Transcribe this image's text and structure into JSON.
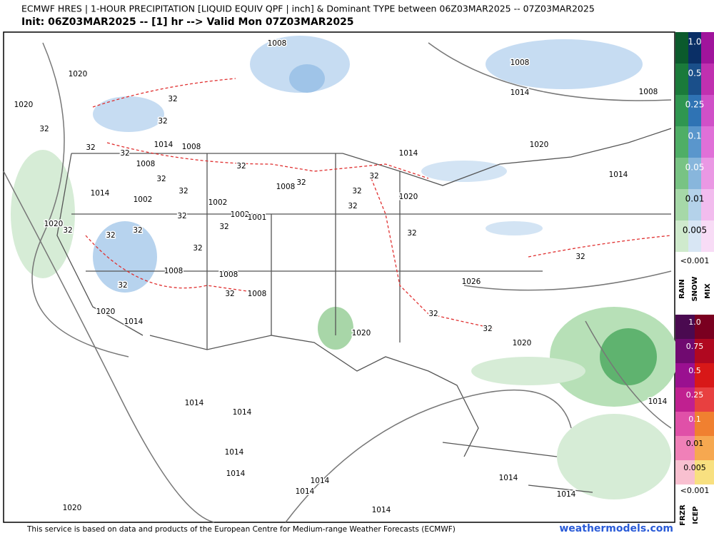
{
  "header": {
    "title": "ECMWF HRES | 1-HOUR PRECIPITATION [LIQUID EQUIV QPF | inch] & Dominant TYPE between 06Z03MAR2025 -- 07Z03MAR2025",
    "subtitle": "Init: 06Z03MAR2025 -- [1] hr --> Valid Mon 07Z03MAR2025"
  },
  "legend": {
    "rain_snow_mix": {
      "levels": [
        "1.0",
        "0.5",
        "0.25",
        "0.1",
        "0.05",
        "0.01",
        "0.005"
      ],
      "below": "<0.001",
      "types": [
        "RAIN",
        "SNOW",
        "MIX"
      ]
    },
    "frzr_icep": {
      "levels": [
        "1.0",
        "0.75",
        "0.5",
        "0.25",
        "0.1",
        "0.01",
        "0.005"
      ],
      "below": "<0.001",
      "types": [
        "FRZR",
        "ICEP"
      ]
    }
  },
  "map_labels": [
    "1008",
    "1020",
    "1008",
    "1014",
    "1008",
    "1020",
    "32",
    "32",
    "32",
    "32",
    "32",
    "1014",
    "1008",
    "1008",
    "32",
    "1014",
    "1020",
    "1014",
    "32",
    "32",
    "1008",
    "32",
    "32",
    "1020",
    "32",
    "1014",
    "32",
    "1002",
    "1002",
    "1002",
    "1001",
    "32",
    "1020",
    "32",
    "32",
    "32",
    "32",
    "32",
    "32",
    "1008",
    "1008",
    "32",
    "1026",
    "32",
    "32",
    "1008",
    "1020",
    "1014",
    "32",
    "32",
    "1020",
    "1020",
    "1014",
    "1014",
    "1014",
    "1014",
    "1014",
    "1014",
    "1014",
    "1014",
    "1014",
    "1020",
    "1014"
  ],
  "footer": {
    "credit": "This service is based on data and products of the European Centre for Medium-range Weather Forecasts (ECMWF)",
    "site": "weathermodels.com"
  }
}
